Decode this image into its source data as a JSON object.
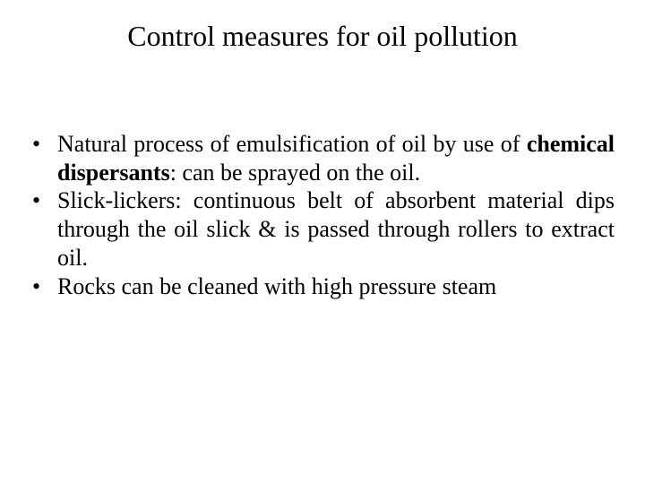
{
  "title": "Control measures for oil pollution",
  "bullets": [
    {
      "pre": "Natural process of emulsification of oil by use of ",
      "bold": "chemical dispersants",
      "post": ": can be sprayed on the oil."
    },
    {
      "pre": "Slick-lickers: continuous belt of absorbent material dips through the oil slick & is passed through rollers to extract oil.",
      "bold": "",
      "post": ""
    },
    {
      "pre": "Rocks can be cleaned with high pressure steam",
      "bold": "",
      "post": ""
    }
  ],
  "colors": {
    "background": "#ffffff",
    "text": "#000000"
  },
  "typography": {
    "title_fontsize": 32,
    "body_fontsize": 26,
    "font_family": "Times New Roman"
  }
}
